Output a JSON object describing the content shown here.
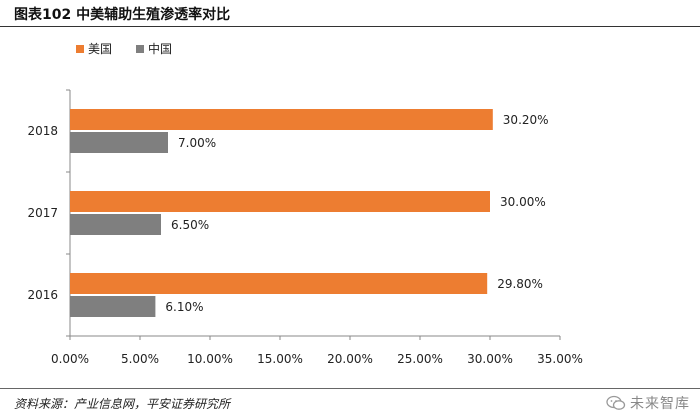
{
  "header": {
    "title": "图表102  中美辅助生殖渗透率对比"
  },
  "footer": {
    "source": "资料来源：产业信息网，平安证券研究所",
    "watermark": "未来智库",
    "watermark_icon": "wechat-icon"
  },
  "colors": {
    "us": "#ED7D31",
    "cn": "#7F7F7F",
    "axis": "#888888"
  },
  "chart_data": {
    "type": "bar",
    "orientation": "horizontal",
    "categories": [
      "2018",
      "2017",
      "2016"
    ],
    "series": [
      {
        "name": "美国",
        "values": [
          30.2,
          30.0,
          29.8
        ],
        "labels": [
          "30.20%",
          "30.00%",
          "29.80%"
        ]
      },
      {
        "name": "中国",
        "values": [
          7.0,
          6.5,
          6.1
        ],
        "labels": [
          "7.00%",
          "6.50%",
          "6.10%"
        ]
      }
    ],
    "xlim": [
      0,
      35
    ],
    "xticks": [
      "0.00%",
      "5.00%",
      "10.00%",
      "15.00%",
      "20.00%",
      "25.00%",
      "30.00%",
      "35.00%"
    ],
    "xtick_values": [
      0,
      5,
      10,
      15,
      20,
      25,
      30,
      35
    ],
    "legend_position": "top-left",
    "grid": false,
    "xlabel": "",
    "ylabel": "",
    "title": ""
  }
}
